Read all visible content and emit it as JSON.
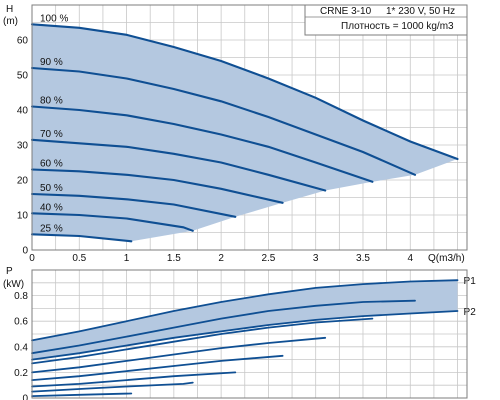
{
  "chart_data": [
    {
      "type": "line",
      "info": {
        "model": "CRNE 3-10",
        "supply": "1* 230 V, 50 Hz",
        "density": "Плотность = 1000 kg/m3"
      },
      "ylabel": "H",
      "yunit": "(m)",
      "xlabel": "Q(m3/h)",
      "xlim": [
        0,
        4.6
      ],
      "ylim": [
        0,
        70
      ],
      "xticks": [
        "0",
        "0.5",
        "1",
        "1.5",
        "2",
        "2.5",
        "3",
        "3.5",
        "4"
      ],
      "yticks": [
        "0",
        "10",
        "20",
        "30",
        "40",
        "50",
        "60"
      ],
      "envelope_color": "#b4c8e0",
      "curve_color": "#0f4f93",
      "series": [
        {
          "name": "100 %",
          "x": [
            0,
            0.5,
            1.0,
            1.5,
            2.0,
            2.5,
            3.0,
            3.5,
            4.0,
            4.5
          ],
          "y": [
            64.5,
            63.5,
            61.5,
            58,
            54,
            49,
            43.5,
            37,
            31,
            26
          ]
        },
        {
          "name": "90 %",
          "x": [
            0,
            0.5,
            1.0,
            1.5,
            2.0,
            2.5,
            3.0,
            3.5,
            4.05
          ],
          "y": [
            52,
            51,
            49,
            46,
            42.5,
            38,
            33,
            28,
            21.5
          ]
        },
        {
          "name": "80 %",
          "x": [
            0,
            0.5,
            1.0,
            1.5,
            2.0,
            2.5,
            3.0,
            3.6
          ],
          "y": [
            41,
            40,
            38.5,
            36,
            33,
            29.5,
            25,
            19.5
          ]
        },
        {
          "name": "70 %",
          "x": [
            0,
            0.5,
            1.0,
            1.5,
            2.0,
            2.5,
            3.1
          ],
          "y": [
            31.5,
            30.5,
            29.5,
            27.5,
            25,
            21.5,
            17
          ]
        },
        {
          "name": "60 %",
          "x": [
            0,
            0.5,
            1.0,
            1.5,
            2.0,
            2.65
          ],
          "y": [
            23,
            22.5,
            21.5,
            20,
            17.5,
            13.5
          ]
        },
        {
          "name": "50 %",
          "x": [
            0,
            0.5,
            1.0,
            1.5,
            2.15
          ],
          "y": [
            16,
            15.5,
            14.5,
            13,
            9.5
          ]
        },
        {
          "name": "40 %",
          "x": [
            0,
            0.5,
            1.0,
            1.6,
            1.7
          ],
          "y": [
            10.5,
            10,
            9,
            6.5,
            5.5
          ]
        },
        {
          "name": "25 %",
          "x": [
            0,
            0.5,
            1.05
          ],
          "y": [
            4.5,
            4,
            2.5
          ]
        }
      ]
    },
    {
      "type": "line",
      "ylabel": "P",
      "yunit": "(kW)",
      "xlim": [
        0,
        4.6
      ],
      "ylim": [
        0,
        1.0
      ],
      "yticks": [
        "0",
        "0.2",
        "0.4",
        "0.6",
        "0.8"
      ],
      "envelope_color": "#b4c8e0",
      "curve_color": "#0f4f93",
      "series": [
        {
          "name": "P1",
          "x": [
            0,
            0.5,
            1.0,
            1.5,
            2.0,
            2.5,
            3.0,
            3.5,
            4.0,
            4.5
          ],
          "y": [
            0.45,
            0.52,
            0.6,
            0.68,
            0.75,
            0.81,
            0.86,
            0.89,
            0.91,
            0.92
          ]
        },
        {
          "name": "P2",
          "x": [
            0,
            0.5,
            1.0,
            1.5,
            2.0,
            2.5,
            3.0,
            3.5,
            4.0,
            4.5
          ],
          "y": [
            0.3,
            0.35,
            0.41,
            0.47,
            0.52,
            0.57,
            0.61,
            0.64,
            0.66,
            0.68
          ]
        },
        {
          "x": [
            0,
            0.5,
            1.0,
            1.5,
            2.0,
            2.5,
            3.0,
            3.5,
            4.05
          ],
          "y": [
            0.35,
            0.41,
            0.48,
            0.55,
            0.62,
            0.68,
            0.72,
            0.75,
            0.76
          ]
        },
        {
          "x": [
            0,
            0.5,
            1.0,
            1.5,
            2.0,
            2.5,
            3.0,
            3.6
          ],
          "y": [
            0.27,
            0.32,
            0.38,
            0.44,
            0.5,
            0.55,
            0.59,
            0.62
          ]
        },
        {
          "x": [
            0,
            0.5,
            1.0,
            1.5,
            2.0,
            2.5,
            3.1
          ],
          "y": [
            0.2,
            0.24,
            0.29,
            0.34,
            0.39,
            0.43,
            0.47
          ]
        },
        {
          "x": [
            0,
            0.5,
            1.0,
            1.5,
            2.0,
            2.65
          ],
          "y": [
            0.14,
            0.17,
            0.21,
            0.25,
            0.29,
            0.33
          ]
        },
        {
          "x": [
            0,
            0.5,
            1.0,
            1.5,
            2.15
          ],
          "y": [
            0.09,
            0.11,
            0.14,
            0.17,
            0.2
          ]
        },
        {
          "x": [
            0,
            0.5,
            1.0,
            1.6,
            1.7
          ],
          "y": [
            0.05,
            0.07,
            0.09,
            0.11,
            0.12
          ]
        },
        {
          "x": [
            0,
            0.5,
            1.05
          ],
          "y": [
            0.015,
            0.025,
            0.035
          ]
        }
      ]
    }
  ]
}
